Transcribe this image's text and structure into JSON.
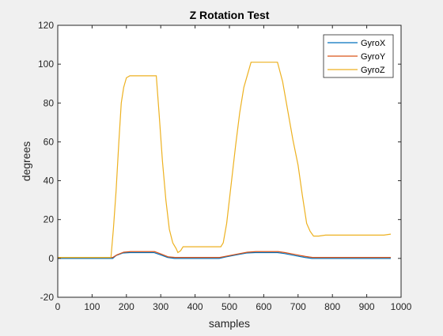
{
  "chart_data": {
    "type": "line",
    "title": "Z Rotation Test",
    "xlabel": "samples",
    "ylabel": "degrees",
    "xlim": [
      0,
      1000
    ],
    "ylim": [
      -20,
      120
    ],
    "xticks": [
      0,
      100,
      200,
      300,
      400,
      500,
      600,
      700,
      800,
      900,
      1000
    ],
    "yticks": [
      -20,
      0,
      20,
      40,
      60,
      80,
      100,
      120
    ],
    "grid": false,
    "legend_position": "top-right",
    "series": [
      {
        "name": "GyroX",
        "color": "#0072BD",
        "points": [
          [
            0,
            0
          ],
          [
            160,
            0
          ],
          [
            170,
            1.5
          ],
          [
            190,
            2.8
          ],
          [
            210,
            3
          ],
          [
            280,
            3
          ],
          [
            300,
            1.8
          ],
          [
            320,
            0.5
          ],
          [
            340,
            0
          ],
          [
            470,
            0
          ],
          [
            490,
            0.8
          ],
          [
            520,
            1.8
          ],
          [
            550,
            2.8
          ],
          [
            575,
            3
          ],
          [
            640,
            3
          ],
          [
            660,
            2.5
          ],
          [
            690,
            1.5
          ],
          [
            720,
            0.5
          ],
          [
            740,
            0
          ],
          [
            970,
            0
          ]
        ]
      },
      {
        "name": "GyroY",
        "color": "#D95319",
        "points": [
          [
            0,
            0.5
          ],
          [
            160,
            0.5
          ],
          [
            172,
            1.8
          ],
          [
            192,
            3.2
          ],
          [
            212,
            3.5
          ],
          [
            282,
            3.5
          ],
          [
            302,
            2.2
          ],
          [
            322,
            0.8
          ],
          [
            342,
            0.5
          ],
          [
            472,
            0.5
          ],
          [
            492,
            1.2
          ],
          [
            522,
            2.2
          ],
          [
            552,
            3.2
          ],
          [
            577,
            3.5
          ],
          [
            642,
            3.5
          ],
          [
            662,
            3
          ],
          [
            692,
            2
          ],
          [
            722,
            1
          ],
          [
            742,
            0.5
          ],
          [
            970,
            0.5
          ]
        ]
      },
      {
        "name": "GyroZ",
        "color": "#EDB120",
        "points": [
          [
            0,
            0.5
          ],
          [
            155,
            0.5
          ],
          [
            162,
            15
          ],
          [
            170,
            35
          ],
          [
            178,
            60
          ],
          [
            185,
            80
          ],
          [
            192,
            88
          ],
          [
            200,
            93
          ],
          [
            210,
            94
          ],
          [
            287,
            94
          ],
          [
            295,
            75
          ],
          [
            305,
            50
          ],
          [
            315,
            30
          ],
          [
            325,
            15
          ],
          [
            335,
            8
          ],
          [
            345,
            5
          ],
          [
            350,
            3
          ],
          [
            358,
            4
          ],
          [
            365,
            6
          ],
          [
            375,
            6
          ],
          [
            475,
            6
          ],
          [
            482,
            8
          ],
          [
            492,
            18
          ],
          [
            505,
            38
          ],
          [
            518,
            58
          ],
          [
            530,
            75
          ],
          [
            542,
            88
          ],
          [
            555,
            96
          ],
          [
            563,
            101
          ],
          [
            575,
            101
          ],
          [
            640,
            101
          ],
          [
            655,
            91
          ],
          [
            670,
            76
          ],
          [
            685,
            61
          ],
          [
            700,
            48
          ],
          [
            712,
            33
          ],
          [
            725,
            18
          ],
          [
            735,
            14
          ],
          [
            745,
            11.5
          ],
          [
            760,
            11.5
          ],
          [
            780,
            12
          ],
          [
            950,
            12
          ],
          [
            970,
            12.5
          ]
        ]
      }
    ]
  }
}
